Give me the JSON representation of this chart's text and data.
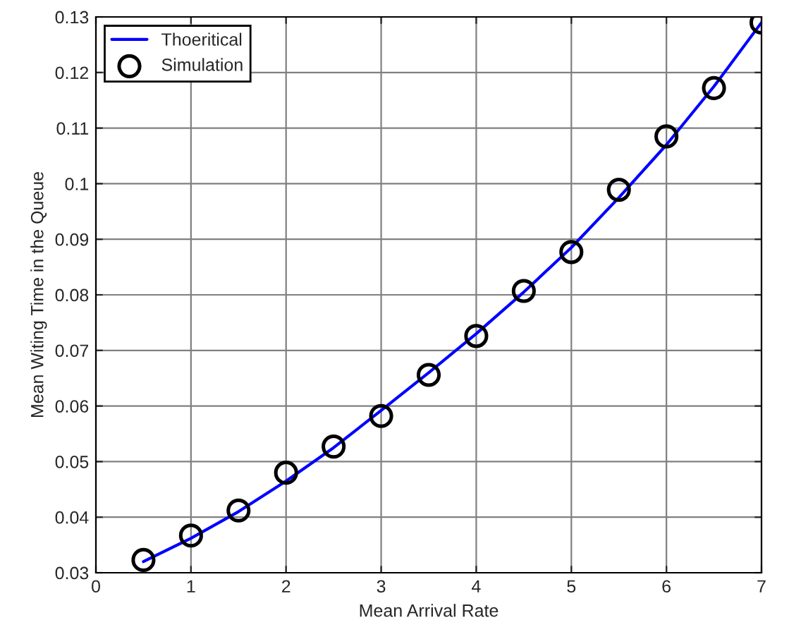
{
  "chart_data": {
    "type": "line",
    "xlabel": "Mean Arrival Rate",
    "ylabel": "Mean Witing Time in the Queue",
    "series": [
      {
        "name": "Thoeritical",
        "color": "#0000ff",
        "marker": "none",
        "line_style": "solid",
        "x": [
          0.5,
          1,
          1.5,
          2,
          2.5,
          3,
          3.5,
          4,
          4.5,
          5,
          5.5,
          6,
          6.5,
          7
        ],
        "values": [
          0.032,
          0.0362,
          0.041,
          0.0465,
          0.0525,
          0.0592,
          0.066,
          0.073,
          0.0805,
          0.0885,
          0.0975,
          0.107,
          0.1175,
          0.129
        ]
      },
      {
        "name": "Simulation",
        "type": "scatter",
        "color": "#000000",
        "marker": "circle",
        "x": [
          0.5,
          1,
          1.5,
          2,
          2.5,
          3,
          3.5,
          4,
          4.5,
          5,
          5.5,
          6,
          6.5,
          7
        ],
        "values": [
          0.0323,
          0.0367,
          0.0412,
          0.048,
          0.0527,
          0.0582,
          0.0656,
          0.0726,
          0.0807,
          0.0877,
          0.0989,
          0.1085,
          0.1172,
          0.129
        ]
      }
    ],
    "xlim": [
      0,
      7
    ],
    "xticks": [
      0,
      1,
      2,
      3,
      4,
      5,
      6,
      7
    ],
    "ylim": [
      0.03,
      0.13
    ],
    "yticks": [
      0.03,
      0.04,
      0.05,
      0.06,
      0.07,
      0.08,
      0.09,
      0.1,
      0.11,
      0.12,
      0.13
    ],
    "grid": true,
    "legend": "top left"
  }
}
